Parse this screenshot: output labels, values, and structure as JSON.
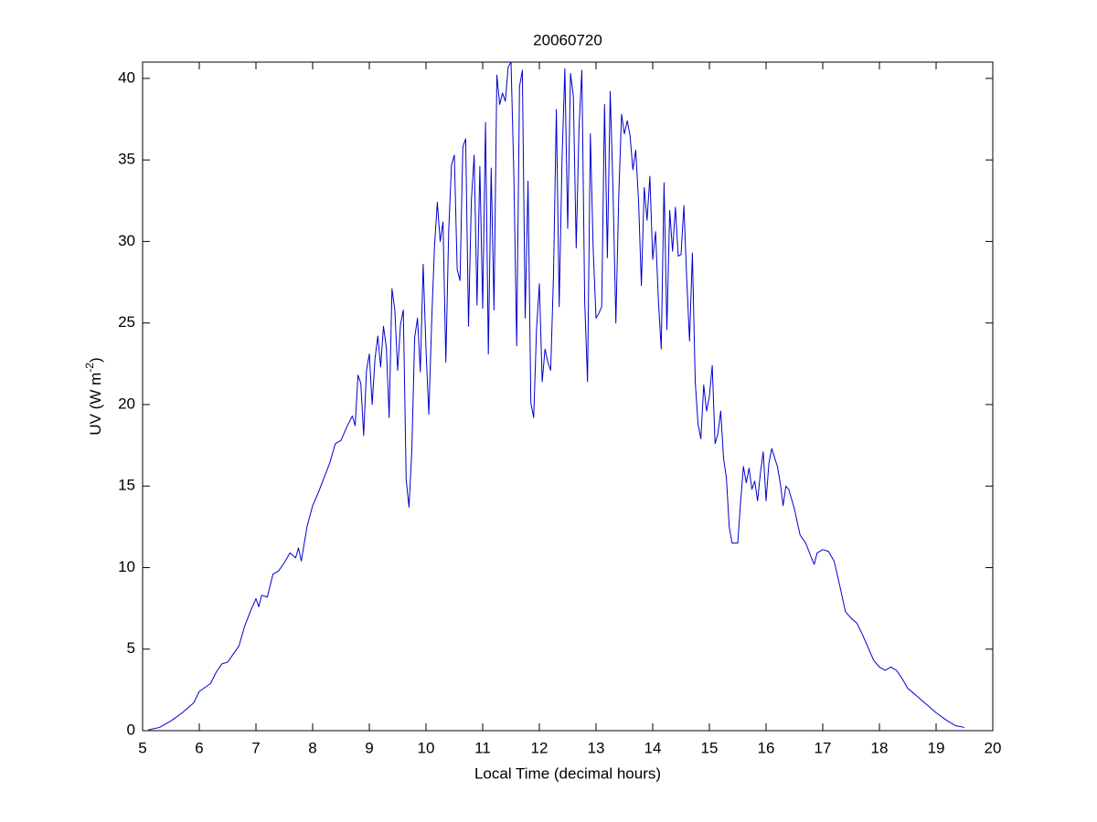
{
  "chart_data": {
    "type": "line",
    "title": "20060720",
    "xlabel": "Local Time (decimal hours)",
    "ylabel": {
      "text": "UV (W m",
      "superscript": "-2",
      "suffix": ")"
    },
    "xlim": [
      5,
      20
    ],
    "ylim": [
      0,
      41
    ],
    "xticks": [
      5,
      6,
      7,
      8,
      9,
      10,
      11,
      12,
      13,
      14,
      15,
      16,
      17,
      18,
      19,
      20
    ],
    "yticks": [
      0,
      5,
      10,
      15,
      20,
      25,
      30,
      35,
      40
    ],
    "grid": false,
    "series": [
      {
        "color": "#0000cc",
        "x": [
          5.1,
          5.3,
          5.5,
          5.7,
          5.9,
          6.0,
          6.2,
          6.3,
          6.4,
          6.5,
          6.6,
          6.7,
          6.8,
          6.9,
          7.0,
          7.05,
          7.1,
          7.2,
          7.3,
          7.4,
          7.5,
          7.6,
          7.7,
          7.75,
          7.8,
          7.9,
          8.0,
          8.1,
          8.2,
          8.3,
          8.4,
          8.5,
          8.6,
          8.7,
          8.75,
          8.8,
          8.85,
          8.9,
          8.95,
          9.0,
          9.05,
          9.1,
          9.15,
          9.2,
          9.25,
          9.3,
          9.35,
          9.4,
          9.45,
          9.5,
          9.55,
          9.6,
          9.65,
          9.7,
          9.75,
          9.8,
          9.85,
          9.9,
          9.95,
          10.0,
          10.05,
          10.1,
          10.15,
          10.2,
          10.25,
          10.3,
          10.35,
          10.4,
          10.45,
          10.5,
          10.55,
          10.6,
          10.65,
          10.7,
          10.75,
          10.8,
          10.85,
          10.9,
          10.95,
          11.0,
          11.05,
          11.1,
          11.15,
          11.2,
          11.25,
          11.3,
          11.35,
          11.4,
          11.45,
          11.5,
          11.55,
          11.6,
          11.65,
          11.7,
          11.75,
          11.8,
          11.85,
          11.9,
          11.95,
          12.0,
          12.05,
          12.1,
          12.15,
          12.2,
          12.25,
          12.3,
          12.35,
          12.4,
          12.45,
          12.5,
          12.55,
          12.6,
          12.65,
          12.7,
          12.75,
          12.8,
          12.85,
          12.9,
          12.95,
          13.0,
          13.05,
          13.1,
          13.15,
          13.2,
          13.25,
          13.3,
          13.35,
          13.4,
          13.45,
          13.5,
          13.55,
          13.6,
          13.65,
          13.7,
          13.75,
          13.8,
          13.85,
          13.9,
          13.95,
          14.0,
          14.05,
          14.1,
          14.15,
          14.2,
          14.25,
          14.3,
          14.35,
          14.4,
          14.45,
          14.5,
          14.55,
          14.6,
          14.65,
          14.7,
          14.75,
          14.8,
          14.85,
          14.9,
          14.95,
          15.0,
          15.05,
          15.1,
          15.15,
          15.2,
          15.25,
          15.3,
          15.35,
          15.4,
          15.5,
          15.55,
          15.6,
          15.65,
          15.7,
          15.75,
          15.8,
          15.85,
          15.9,
          15.95,
          16.0,
          16.05,
          16.1,
          16.2,
          16.25,
          16.3,
          16.35,
          16.4,
          16.5,
          16.6,
          16.7,
          16.8,
          16.85,
          16.9,
          17.0,
          17.1,
          17.2,
          17.3,
          17.4,
          17.5,
          17.6,
          17.7,
          17.8,
          17.9,
          18.0,
          18.1,
          18.2,
          18.3,
          18.4,
          18.5,
          18.6,
          18.8,
          19.0,
          19.2,
          19.35,
          19.5
        ],
        "values": [
          0.05,
          0.2,
          0.6,
          1.1,
          1.7,
          2.4,
          2.9,
          3.6,
          4.1,
          4.2,
          4.7,
          5.2,
          6.4,
          7.3,
          8.1,
          7.6,
          8.3,
          8.2,
          9.6,
          9.8,
          10.3,
          10.9,
          10.6,
          11.2,
          10.4,
          12.5,
          13.8,
          14.6,
          15.5,
          16.4,
          17.6,
          17.8,
          18.6,
          19.3,
          18.7,
          21.8,
          21.3,
          18.1,
          22.1,
          23.1,
          20.0,
          22.8,
          24.2,
          22.3,
          24.8,
          23.5,
          19.2,
          27.1,
          25.8,
          22.1,
          24.9,
          25.8,
          15.4,
          13.7,
          17.2,
          24.1,
          25.3,
          22.0,
          28.6,
          23.4,
          19.4,
          25.1,
          29.7,
          32.4,
          30.0,
          31.2,
          22.6,
          30.6,
          34.7,
          35.3,
          28.3,
          27.6,
          35.8,
          36.3,
          24.8,
          32.5,
          35.3,
          26.1,
          34.6,
          25.9,
          37.3,
          23.1,
          34.5,
          25.8,
          40.2,
          38.4,
          39.1,
          38.6,
          40.7,
          41.0,
          34.1,
          23.6,
          39.5,
          40.5,
          25.3,
          33.7,
          20.1,
          19.2,
          24.6,
          27.4,
          21.4,
          23.4,
          22.6,
          22.1,
          28.0,
          38.1,
          26.0,
          35.0,
          40.6,
          30.8,
          40.3,
          38.9,
          29.6,
          37.0,
          40.5,
          26.3,
          21.4,
          36.6,
          29.5,
          25.3,
          25.6,
          26.0,
          38.4,
          29.0,
          39.2,
          33.1,
          25.0,
          32.7,
          37.8,
          36.6,
          37.4,
          36.5,
          34.4,
          35.6,
          32.5,
          27.3,
          33.3,
          31.3,
          34.0,
          28.9,
          30.6,
          26.4,
          23.4,
          33.6,
          24.6,
          31.9,
          29.4,
          32.1,
          29.1,
          29.2,
          32.2,
          27.7,
          23.9,
          29.3,
          21.4,
          18.8,
          17.9,
          21.2,
          19.6,
          20.5,
          22.4,
          17.6,
          18.2,
          19.6,
          16.7,
          15.5,
          12.5,
          11.5,
          11.5,
          14.0,
          16.2,
          15.2,
          16.1,
          14.8,
          15.3,
          14.1,
          15.8,
          17.1,
          14.1,
          16.4,
          17.3,
          16.2,
          15.2,
          13.8,
          15.0,
          14.8,
          13.6,
          12.0,
          11.5,
          10.6,
          10.2,
          10.9,
          11.1,
          11.0,
          10.4,
          8.9,
          7.3,
          6.9,
          6.6,
          5.9,
          5.1,
          4.3,
          3.9,
          3.7,
          3.9,
          3.7,
          3.2,
          2.6,
          2.3,
          1.7,
          1.1,
          0.6,
          0.3,
          0.2
        ]
      }
    ]
  }
}
